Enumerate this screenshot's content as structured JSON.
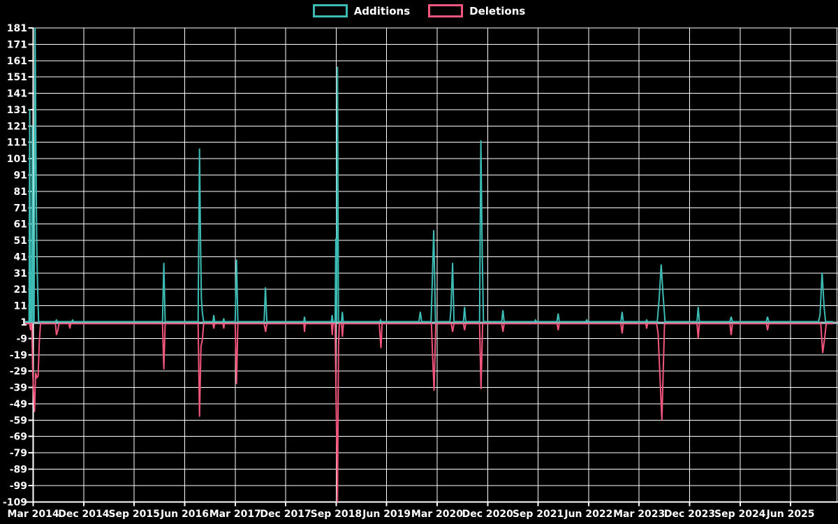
{
  "legend": {
    "additions_label": "Additions",
    "deletions_label": "Deletions"
  },
  "colors": {
    "background": "#000000",
    "grid": "#ffffff",
    "axis": "#ffffff",
    "baseline": "#a9bcc4",
    "text": "#ffffff",
    "additions": "#3cbcb4",
    "deletions": "#f2567c"
  },
  "chart_data": {
    "type": "line",
    "title": "",
    "legend_position": "top-center",
    "grid": true,
    "x_range": [
      2014.05,
      2026.1
    ],
    "y_range": [
      -109,
      181
    ],
    "y_baseline": 1,
    "y_ticks": [
      181,
      171,
      161,
      151,
      141,
      131,
      121,
      111,
      101,
      91,
      81,
      71,
      61,
      51,
      41,
      31,
      21,
      11,
      1,
      -9,
      -19,
      -29,
      -39,
      -49,
      -59,
      -69,
      -79,
      -89,
      -99,
      -109
    ],
    "x_ticks": [
      {
        "year": 2014.17,
        "label": "Mar 2014"
      },
      {
        "year": 2014.92,
        "label": "Dec 2014"
      },
      {
        "year": 2015.67,
        "label": "Sep 2015"
      },
      {
        "year": 2016.42,
        "label": "Jun 2016"
      },
      {
        "year": 2017.17,
        "label": "Mar 2017"
      },
      {
        "year": 2017.92,
        "label": "Dec 2017"
      },
      {
        "year": 2018.67,
        "label": "Sep 2018"
      },
      {
        "year": 2019.42,
        "label": "Jun 2019"
      },
      {
        "year": 2020.17,
        "label": "Mar 2020"
      },
      {
        "year": 2020.92,
        "label": "Dec 2020"
      },
      {
        "year": 2021.67,
        "label": "Sep 2021"
      },
      {
        "year": 2022.42,
        "label": "Jun 2022"
      },
      {
        "year": 2023.17,
        "label": "Mar 2023"
      },
      {
        "year": 2023.92,
        "label": "Dec 2023"
      },
      {
        "year": 2024.67,
        "label": "Sep 2024"
      },
      {
        "year": 2025.42,
        "label": "Jun 2025"
      }
    ],
    "series": [
      {
        "name": "Additions",
        "color": "#3cbcb4",
        "points": [
          [
            2014.05,
            1
          ],
          [
            2014.108,
            1
          ],
          [
            2014.118,
            131
          ],
          [
            2014.128,
            1
          ],
          [
            2014.145,
            1
          ],
          [
            2014.155,
            121
          ],
          [
            2014.168,
            1
          ],
          [
            2014.183,
            1
          ],
          [
            2014.198,
            181
          ],
          [
            2014.212,
            95
          ],
          [
            2014.224,
            43
          ],
          [
            2014.236,
            21
          ],
          [
            2014.25,
            1
          ],
          [
            2014.5,
            1
          ],
          [
            2014.515,
            2
          ],
          [
            2014.53,
            1
          ],
          [
            2014.74,
            1
          ],
          [
            2014.755,
            2
          ],
          [
            2014.77,
            1
          ],
          [
            2016.09,
            1
          ],
          [
            2016.11,
            37
          ],
          [
            2016.13,
            1
          ],
          [
            2016.62,
            1
          ],
          [
            2016.64,
            107
          ],
          [
            2016.655,
            52
          ],
          [
            2016.668,
            15
          ],
          [
            2016.682,
            7
          ],
          [
            2016.7,
            1
          ],
          [
            2016.84,
            1
          ],
          [
            2016.852,
            5
          ],
          [
            2016.865,
            1
          ],
          [
            2016.99,
            1
          ],
          [
            2017.0,
            3
          ],
          [
            2017.01,
            1
          ],
          [
            2017.17,
            1
          ],
          [
            2017.19,
            39
          ],
          [
            2017.21,
            1
          ],
          [
            2017.6,
            1
          ],
          [
            2017.62,
            22
          ],
          [
            2017.64,
            1
          ],
          [
            2018.19,
            1
          ],
          [
            2018.2,
            4
          ],
          [
            2018.21,
            1
          ],
          [
            2018.6,
            1
          ],
          [
            2018.61,
            5
          ],
          [
            2018.622,
            1
          ],
          [
            2018.655,
            1
          ],
          [
            2018.665,
            52
          ],
          [
            2018.675,
            1
          ],
          [
            2018.69,
            157
          ],
          [
            2018.705,
            1
          ],
          [
            2018.75,
            1
          ],
          [
            2018.762,
            7
          ],
          [
            2018.775,
            1
          ],
          [
            2019.32,
            1
          ],
          [
            2019.33,
            2
          ],
          [
            2019.34,
            1
          ],
          [
            2019.9,
            1
          ],
          [
            2019.92,
            7
          ],
          [
            2019.94,
            1
          ],
          [
            2020.08,
            1
          ],
          [
            2020.1,
            28
          ],
          [
            2020.12,
            57
          ],
          [
            2020.145,
            1
          ],
          [
            2020.36,
            1
          ],
          [
            2020.375,
            8
          ],
          [
            2020.4,
            37
          ],
          [
            2020.42,
            1
          ],
          [
            2020.56,
            1
          ],
          [
            2020.578,
            10
          ],
          [
            2020.595,
            1
          ],
          [
            2020.8,
            1
          ],
          [
            2020.82,
            112
          ],
          [
            2020.84,
            41
          ],
          [
            2020.858,
            1
          ],
          [
            2021.13,
            1
          ],
          [
            2021.148,
            8
          ],
          [
            2021.165,
            1
          ],
          [
            2021.62,
            1
          ],
          [
            2021.632,
            2
          ],
          [
            2021.645,
            1
          ],
          [
            2021.95,
            1
          ],
          [
            2021.968,
            6
          ],
          [
            2021.985,
            1
          ],
          [
            2022.38,
            1
          ],
          [
            2022.392,
            2
          ],
          [
            2022.405,
            1
          ],
          [
            2022.9,
            1
          ],
          [
            2022.918,
            7
          ],
          [
            2022.935,
            1
          ],
          [
            2023.27,
            1
          ],
          [
            2023.282,
            2
          ],
          [
            2023.295,
            1
          ],
          [
            2023.44,
            1
          ],
          [
            2023.47,
            16
          ],
          [
            2023.498,
            36
          ],
          [
            2023.525,
            18
          ],
          [
            2023.555,
            1
          ],
          [
            2024.03,
            1
          ],
          [
            2024.048,
            10
          ],
          [
            2024.066,
            1
          ],
          [
            2024.52,
            1
          ],
          [
            2024.538,
            4
          ],
          [
            2024.556,
            1
          ],
          [
            2025.06,
            1
          ],
          [
            2025.078,
            4
          ],
          [
            2025.096,
            1
          ],
          [
            2025.835,
            1
          ],
          [
            2025.858,
            5
          ],
          [
            2025.888,
            31
          ],
          [
            2025.918,
            10
          ],
          [
            2025.94,
            1
          ],
          [
            2026.05,
            1
          ]
        ]
      },
      {
        "name": "Deletions",
        "color": "#f2567c",
        "points": [
          [
            2014.05,
            1
          ],
          [
            2014.118,
            1
          ],
          [
            2014.13,
            -3
          ],
          [
            2014.142,
            1
          ],
          [
            2014.15,
            1
          ],
          [
            2014.162,
            -29
          ],
          [
            2014.19,
            -53
          ],
          [
            2014.206,
            -29
          ],
          [
            2014.224,
            -32
          ],
          [
            2014.243,
            -31
          ],
          [
            2014.26,
            -11
          ],
          [
            2014.278,
            1
          ],
          [
            2014.5,
            1
          ],
          [
            2014.515,
            -6
          ],
          [
            2014.535,
            -3
          ],
          [
            2014.552,
            1
          ],
          [
            2014.7,
            1
          ],
          [
            2014.714,
            -2
          ],
          [
            2014.728,
            1
          ],
          [
            2016.09,
            1
          ],
          [
            2016.11,
            -27
          ],
          [
            2016.13,
            1
          ],
          [
            2016.62,
            1
          ],
          [
            2016.64,
            -56
          ],
          [
            2016.662,
            -13
          ],
          [
            2016.682,
            -9
          ],
          [
            2016.702,
            1
          ],
          [
            2016.84,
            1
          ],
          [
            2016.852,
            -2
          ],
          [
            2016.865,
            1
          ],
          [
            2016.99,
            1
          ],
          [
            2017.0,
            -2
          ],
          [
            2017.01,
            1
          ],
          [
            2017.17,
            1
          ],
          [
            2017.19,
            -36
          ],
          [
            2017.21,
            1
          ],
          [
            2017.6,
            1
          ],
          [
            2017.622,
            -4
          ],
          [
            2017.642,
            1
          ],
          [
            2018.19,
            1
          ],
          [
            2018.2,
            -4
          ],
          [
            2018.21,
            1
          ],
          [
            2018.6,
            1
          ],
          [
            2018.612,
            -6
          ],
          [
            2018.625,
            1
          ],
          [
            2018.655,
            1
          ],
          [
            2018.665,
            -33
          ],
          [
            2018.69,
            -109
          ],
          [
            2018.705,
            -13
          ],
          [
            2018.717,
            1
          ],
          [
            2018.75,
            1
          ],
          [
            2018.763,
            -7
          ],
          [
            2018.778,
            1
          ],
          [
            2019.31,
            1
          ],
          [
            2019.322,
            -6
          ],
          [
            2019.335,
            -14
          ],
          [
            2019.352,
            1
          ],
          [
            2020.085,
            1
          ],
          [
            2020.102,
            -18
          ],
          [
            2020.125,
            -40
          ],
          [
            2020.15,
            1
          ],
          [
            2020.38,
            1
          ],
          [
            2020.4,
            -4
          ],
          [
            2020.42,
            1
          ],
          [
            2020.56,
            1
          ],
          [
            2020.578,
            -3
          ],
          [
            2020.595,
            1
          ],
          [
            2020.8,
            1
          ],
          [
            2020.822,
            -39
          ],
          [
            2020.846,
            1
          ],
          [
            2021.13,
            1
          ],
          [
            2021.148,
            -4
          ],
          [
            2021.165,
            1
          ],
          [
            2021.95,
            1
          ],
          [
            2021.968,
            -3
          ],
          [
            2021.985,
            1
          ],
          [
            2022.9,
            1
          ],
          [
            2022.918,
            -5
          ],
          [
            2022.935,
            1
          ],
          [
            2023.27,
            1
          ],
          [
            2023.282,
            -2
          ],
          [
            2023.295,
            1
          ],
          [
            2023.43,
            1
          ],
          [
            2023.452,
            -5
          ],
          [
            2023.472,
            -24
          ],
          [
            2023.508,
            -58
          ],
          [
            2023.548,
            1
          ],
          [
            2024.03,
            1
          ],
          [
            2024.048,
            -8
          ],
          [
            2024.066,
            1
          ],
          [
            2024.52,
            1
          ],
          [
            2024.538,
            -6
          ],
          [
            2024.556,
            1
          ],
          [
            2025.06,
            1
          ],
          [
            2025.078,
            -3
          ],
          [
            2025.096,
            1
          ],
          [
            2025.868,
            1
          ],
          [
            2025.898,
            -17
          ],
          [
            2025.926,
            -8
          ],
          [
            2025.95,
            1
          ],
          [
            2026.05,
            1
          ]
        ]
      }
    ]
  }
}
